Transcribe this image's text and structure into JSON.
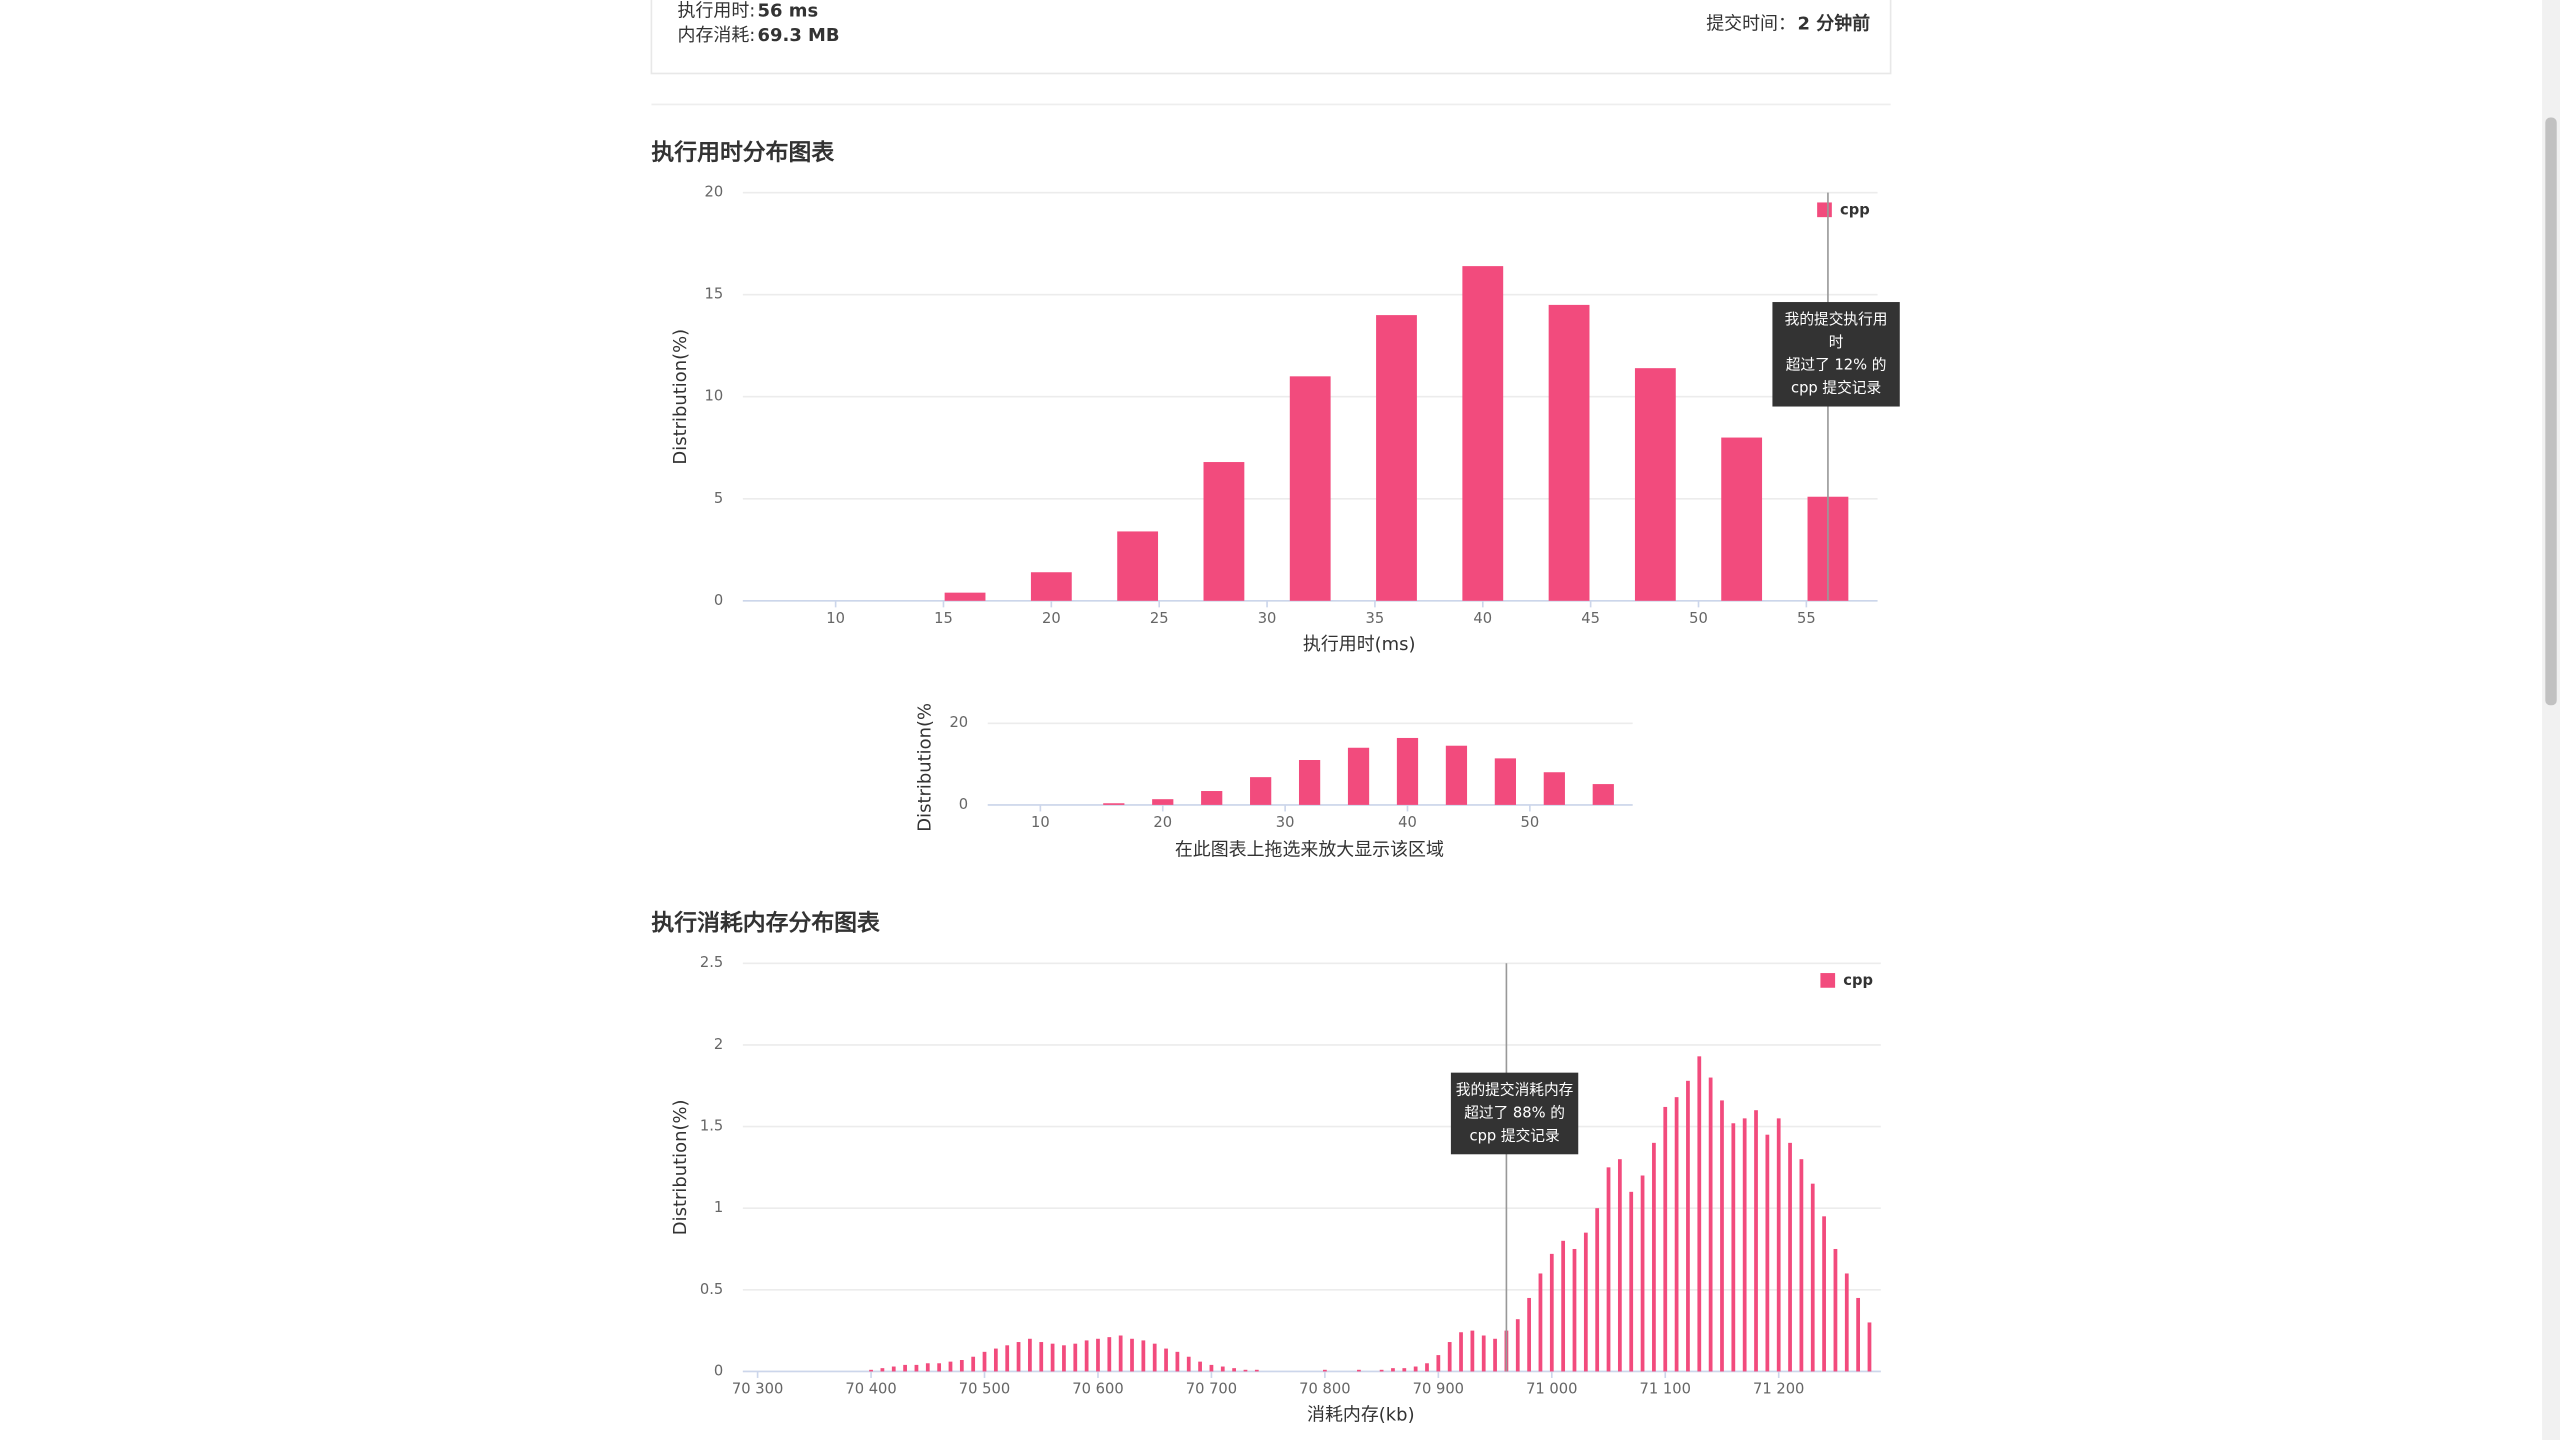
{
  "header": {
    "runtime_label": "执行用时:",
    "runtime_value": "56 ms",
    "memory_label": "内存消耗:",
    "memory_value": "69.3 MB",
    "submit_label": "提交时间：",
    "submit_value": "2 分钟前"
  },
  "chart_data": [
    {
      "type": "bar",
      "title": "执行用时分布图表",
      "x_label": "执行用时(ms)",
      "y_label": "Distribution(%)",
      "x": [
        16,
        20,
        24,
        28,
        32,
        36,
        40,
        44,
        48,
        52,
        56
      ],
      "series": [
        {
          "name": "cpp",
          "color": "#f24b7d",
          "values": [
            0.4,
            1.4,
            3.4,
            6.8,
            11.0,
            14.0,
            16.4,
            14.5,
            11.4,
            8.0,
            5.1
          ]
        }
      ],
      "xlim": [
        5.7,
        58.3
      ],
      "ylim": [
        0,
        20
      ],
      "xticks": [
        10,
        15,
        20,
        25,
        30,
        35,
        40,
        45,
        50,
        55
      ],
      "yticks": [
        0,
        5,
        10,
        15,
        20
      ],
      "grid": true,
      "legend": "top-right",
      "marker": 56,
      "tooltip": [
        "我的提交执行用",
        "时",
        "超过了 12% 的",
        "cpp 提交记录"
      ],
      "navigator": {
        "xlim": [
          5.7,
          58.4
        ],
        "ylim": [
          0,
          20
        ],
        "xticks": [
          10,
          20,
          30,
          40,
          50
        ],
        "yticks": [
          0,
          20
        ],
        "y_label": "Distribution(%",
        "caption": "在此图表上拖选来放大显示该区域"
      }
    },
    {
      "type": "bar",
      "title": "执行消耗内存分布图表",
      "x_label": "消耗内存(kb)",
      "y_label": "Distribution(%)",
      "x": [
        70400,
        70410,
        70420,
        70430,
        70440,
        70450,
        70460,
        70470,
        70480,
        70490,
        70500,
        70510,
        70520,
        70530,
        70540,
        70550,
        70560,
        70570,
        70580,
        70590,
        70600,
        70610,
        70620,
        70630,
        70640,
        70650,
        70660,
        70670,
        70680,
        70690,
        70700,
        70710,
        70720,
        70730,
        70740,
        70750,
        70760,
        70770,
        70780,
        70790,
        70800,
        70810,
        70820,
        70830,
        70840,
        70850,
        70860,
        70870,
        70880,
        70890,
        70900,
        70910,
        70920,
        70930,
        70940,
        70950,
        70960,
        70970,
        70980,
        70990,
        71000,
        71010,
        71020,
        71030,
        71040,
        71050,
        71060,
        71070,
        71080,
        71090,
        71100,
        71110,
        71120,
        71130,
        71140,
        71150,
        71160,
        71170,
        71180,
        71190,
        71200,
        71210,
        71220,
        71230,
        71240,
        71250,
        71260,
        71270,
        71280
      ],
      "series": [
        {
          "name": "cpp",
          "color": "#f24b7d",
          "values": [
            0.01,
            0.02,
            0.03,
            0.04,
            0.04,
            0.05,
            0.05,
            0.06,
            0.07,
            0.09,
            0.12,
            0.14,
            0.16,
            0.18,
            0.2,
            0.18,
            0.17,
            0.16,
            0.17,
            0.19,
            0.2,
            0.21,
            0.22,
            0.2,
            0.19,
            0.17,
            0.14,
            0.12,
            0.09,
            0.06,
            0.04,
            0.03,
            0.02,
            0.01,
            0.01,
            0,
            0,
            0,
            0,
            0,
            0.01,
            0,
            0,
            0.01,
            0,
            0.01,
            0.02,
            0.02,
            0.03,
            0.05,
            0.1,
            0.18,
            0.24,
            0.25,
            0.22,
            0.2,
            0.25,
            0.32,
            0.45,
            0.6,
            0.72,
            0.8,
            0.75,
            0.85,
            1.0,
            1.25,
            1.3,
            1.1,
            1.2,
            1.4,
            1.62,
            1.68,
            1.78,
            1.93,
            1.8,
            1.66,
            1.52,
            1.55,
            1.6,
            1.45,
            1.55,
            1.4,
            1.3,
            1.15,
            0.95,
            0.75,
            0.6,
            0.45,
            0.3
          ]
        }
      ],
      "xlim": [
        70287,
        71290
      ],
      "ylim": [
        0,
        2.5
      ],
      "xticks": [
        {
          "value": 70300,
          "label": "70 300"
        },
        {
          "value": 70400,
          "label": "70 400"
        },
        {
          "value": 70500,
          "label": "70 500"
        },
        {
          "value": 70600,
          "label": "70 600"
        },
        {
          "value": 70700,
          "label": "70 700"
        },
        {
          "value": 70800,
          "label": "70 800"
        },
        {
          "value": 70900,
          "label": "70 900"
        },
        {
          "value": 71000,
          "label": "71 000"
        },
        {
          "value": 71100,
          "label": "71 100"
        },
        {
          "value": 71200,
          "label": "71 200"
        }
      ],
      "yticks": [
        0,
        0.5,
        1,
        1.5,
        2,
        2.5
      ],
      "grid": true,
      "legend": "top-right",
      "marker": 70960,
      "tooltip": [
        "我的提交消耗内存",
        "超过了 88% 的",
        "cpp 提交记录"
      ]
    }
  ]
}
